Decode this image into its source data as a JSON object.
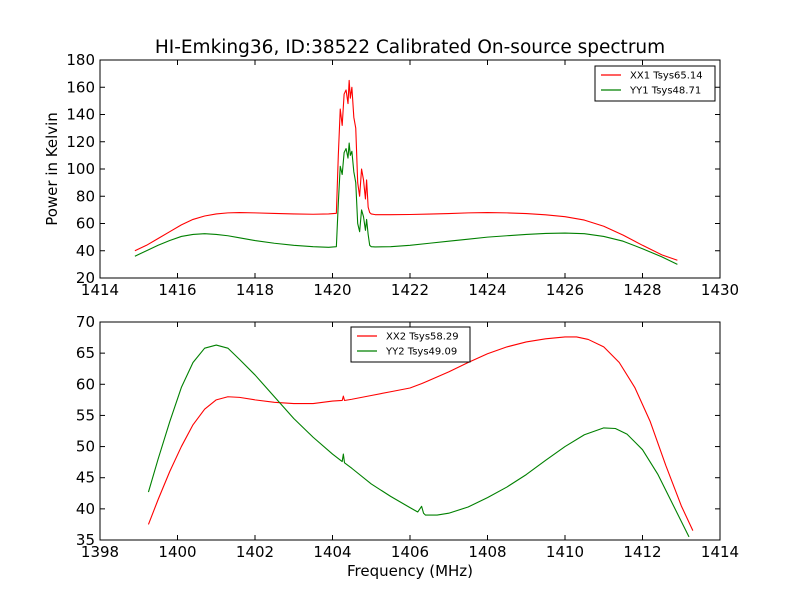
{
  "chart_data": [
    {
      "type": "line",
      "title": "HI-Emking36, ID:38522 Calibrated On-source spectrum",
      "xlabel": "",
      "ylabel": "Power in Kelvin",
      "xlim": [
        1414,
        1430
      ],
      "ylim": [
        20,
        180
      ],
      "xticks": [
        "1414",
        "1416",
        "1418",
        "1420",
        "1422",
        "1424",
        "1426",
        "1428",
        "1430"
      ],
      "yticks": [
        "20",
        "40",
        "60",
        "80",
        "100",
        "120",
        "140",
        "160",
        "180"
      ],
      "legend_position": "upper-right",
      "grid": false,
      "series": [
        {
          "name": "XX1 Tsys65.14",
          "color": "#ff0000",
          "x": [
            1414.9,
            1415.2,
            1415.5,
            1415.8,
            1416.1,
            1416.4,
            1416.7,
            1417.0,
            1417.3,
            1417.6,
            1418.0,
            1418.5,
            1419.0,
            1419.5,
            1419.9,
            1420.1,
            1420.15,
            1420.2,
            1420.25,
            1420.3,
            1420.35,
            1420.4,
            1420.43,
            1420.46,
            1420.5,
            1420.55,
            1420.6,
            1420.65,
            1420.7,
            1420.75,
            1420.8,
            1420.85,
            1420.88,
            1420.92,
            1420.96,
            1421.0,
            1421.1,
            1421.5,
            1422.0,
            1422.5,
            1423.0,
            1423.5,
            1424.0,
            1424.5,
            1425.0,
            1425.5,
            1426.0,
            1426.5,
            1427.0,
            1427.5,
            1428.0,
            1428.5,
            1428.9
          ],
          "y": [
            40,
            44,
            49,
            54,
            59,
            63,
            65.5,
            67,
            67.8,
            68,
            67.8,
            67.4,
            67,
            66.8,
            67,
            67.5,
            110,
            144,
            132,
            155,
            158,
            148,
            165,
            152,
            160,
            138,
            130,
            90,
            80,
            100,
            92,
            78,
            92,
            72,
            68,
            67,
            66.5,
            66.5,
            66.6,
            66.9,
            67.3,
            67.8,
            68,
            67.8,
            67.3,
            66.4,
            65,
            62.5,
            58,
            51.5,
            44,
            37,
            33
          ]
        },
        {
          "name": "YY1 Tsys48.71",
          "color": "#008000",
          "x": [
            1414.9,
            1415.2,
            1415.5,
            1415.8,
            1416.1,
            1416.4,
            1416.7,
            1417.0,
            1417.3,
            1417.6,
            1418.0,
            1418.5,
            1419.0,
            1419.5,
            1419.9,
            1420.1,
            1420.15,
            1420.2,
            1420.25,
            1420.3,
            1420.35,
            1420.4,
            1420.43,
            1420.46,
            1420.5,
            1420.55,
            1420.6,
            1420.65,
            1420.7,
            1420.75,
            1420.8,
            1420.85,
            1420.88,
            1420.92,
            1420.96,
            1421.0,
            1421.1,
            1421.5,
            1422.0,
            1422.5,
            1423.0,
            1423.5,
            1424.0,
            1424.5,
            1425.0,
            1425.5,
            1426.0,
            1426.5,
            1427.0,
            1427.5,
            1428.0,
            1428.5,
            1428.9
          ],
          "y": [
            36,
            40,
            44,
            47.5,
            50.5,
            52,
            52.5,
            52,
            51,
            49.5,
            47.5,
            45.5,
            44,
            43,
            42.5,
            43,
            75,
            102,
            96,
            112,
            115,
            108,
            119,
            110,
            113,
            98,
            90,
            60,
            54,
            70,
            65,
            55,
            63,
            52,
            44,
            43,
            42.8,
            43,
            44,
            45.5,
            47,
            48.5,
            50,
            51,
            52,
            52.7,
            53,
            52.5,
            50.5,
            47,
            41.5,
            35.5,
            30
          ]
        }
      ]
    },
    {
      "type": "line",
      "title": "",
      "xlabel": "Frequency (MHz)",
      "ylabel": "",
      "xlim": [
        1398,
        1414
      ],
      "ylim": [
        35,
        70
      ],
      "xticks": [
        "1398",
        "1400",
        "1402",
        "1404",
        "1406",
        "1408",
        "1410",
        "1412",
        "1414"
      ],
      "yticks": [
        "35",
        "40",
        "45",
        "50",
        "55",
        "60",
        "65",
        "70"
      ],
      "legend_position": "upper-center",
      "grid": false,
      "series": [
        {
          "name": "XX2 Tsys58.29",
          "color": "#ff0000",
          "x": [
            1399.25,
            1399.5,
            1399.8,
            1400.1,
            1400.4,
            1400.7,
            1401.0,
            1401.3,
            1401.6,
            1402.0,
            1402.5,
            1403.0,
            1403.5,
            1404.0,
            1404.25,
            1404.28,
            1404.31,
            1404.5,
            1405.0,
            1405.5,
            1406.0,
            1406.3,
            1406.6,
            1407.0,
            1407.5,
            1408.0,
            1408.5,
            1409.0,
            1409.5,
            1410.0,
            1410.3,
            1410.6,
            1411.0,
            1411.4,
            1411.8,
            1412.2,
            1412.6,
            1413.0,
            1413.3
          ],
          "y": [
            37.5,
            41.5,
            46,
            50,
            53.5,
            56,
            57.5,
            58,
            57.9,
            57.5,
            57.1,
            56.9,
            56.9,
            57.3,
            57.4,
            58.1,
            57.4,
            57.6,
            58.2,
            58.8,
            59.4,
            60.1,
            60.9,
            62,
            63.5,
            64.9,
            66,
            66.8,
            67.3,
            67.6,
            67.6,
            67.2,
            66,
            63.5,
            59.5,
            54,
            47,
            40.5,
            36.5
          ]
        },
        {
          "name": "YY2 Tsys49.09",
          "color": "#008000",
          "x": [
            1399.25,
            1399.5,
            1399.8,
            1400.1,
            1400.4,
            1400.7,
            1401.0,
            1401.3,
            1401.6,
            1402.0,
            1402.5,
            1403.0,
            1403.5,
            1404.0,
            1404.25,
            1404.28,
            1404.31,
            1404.5,
            1405.0,
            1405.5,
            1406.0,
            1406.2,
            1406.3,
            1406.35,
            1406.4,
            1406.7,
            1407.0,
            1407.5,
            1408.0,
            1408.5,
            1409.0,
            1409.5,
            1410.0,
            1410.5,
            1411.0,
            1411.3,
            1411.6,
            1412.0,
            1412.4,
            1412.8,
            1413.2
          ],
          "y": [
            42.7,
            48,
            54,
            59.5,
            63.5,
            65.8,
            66.3,
            65.8,
            64,
            61.5,
            58,
            54.5,
            51.5,
            48.8,
            47.6,
            48.8,
            47.4,
            46.5,
            44,
            42,
            40.2,
            39.5,
            40.4,
            39.3,
            39,
            39,
            39.3,
            40.3,
            41.8,
            43.5,
            45.5,
            47.8,
            50,
            51.9,
            53,
            52.9,
            52,
            49.5,
            45.5,
            40.5,
            35.5
          ]
        }
      ]
    }
  ]
}
